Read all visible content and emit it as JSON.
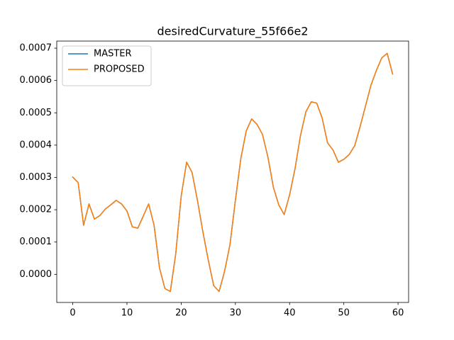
{
  "chart_data": {
    "type": "line",
    "title": "desiredCurvature_55f66e2",
    "x": [
      0,
      1,
      2,
      3,
      4,
      5,
      6,
      7,
      8,
      9,
      10,
      11,
      12,
      13,
      14,
      15,
      16,
      17,
      18,
      19,
      20,
      21,
      22,
      23,
      24,
      25,
      26,
      27,
      28,
      29,
      30,
      31,
      32,
      33,
      34,
      35,
      36,
      37,
      38,
      39,
      40,
      41,
      42,
      43,
      44,
      45,
      46,
      47,
      48,
      49,
      50,
      51,
      52,
      53,
      54,
      55,
      56,
      57,
      58,
      59
    ],
    "series": [
      {
        "name": "MASTER",
        "color": "#1f77b4",
        "values": [
          0.000301,
          0.000284,
          0.000152,
          0.000218,
          0.000171,
          0.000182,
          0.000202,
          0.000215,
          0.000229,
          0.000218,
          0.000196,
          0.000147,
          0.000143,
          0.00018,
          0.000218,
          0.000152,
          2e-05,
          -4.4e-05,
          -5.3e-05,
          6.4e-05,
          0.000242,
          0.000347,
          0.000316,
          0.000229,
          0.000132,
          4.4e-05,
          -3.5e-05,
          -5.3e-05,
          9e-06,
          9.2e-05,
          0.000229,
          0.000358,
          0.000444,
          0.000481,
          0.000464,
          0.000433,
          0.000363,
          0.00027,
          0.000215,
          0.000185,
          0.000246,
          0.000327,
          0.000429,
          0.000503,
          0.000534,
          0.00053,
          0.000484,
          0.000407,
          0.000385,
          0.000347,
          0.000356,
          0.000371,
          0.000398,
          0.000457,
          0.000521,
          0.000585,
          0.000631,
          0.00067,
          0.000684,
          0.00062
        ]
      },
      {
        "name": "PROPOSED",
        "color": "#ff7f0e",
        "values": [
          0.000301,
          0.000284,
          0.000152,
          0.000218,
          0.000171,
          0.000182,
          0.000202,
          0.000215,
          0.000229,
          0.000218,
          0.000196,
          0.000147,
          0.000143,
          0.00018,
          0.000218,
          0.000152,
          2e-05,
          -4.4e-05,
          -5.3e-05,
          6.4e-05,
          0.000242,
          0.000347,
          0.000316,
          0.000229,
          0.000132,
          4.4e-05,
          -3.5e-05,
          -5.3e-05,
          9e-06,
          9.2e-05,
          0.000229,
          0.000358,
          0.000444,
          0.000481,
          0.000464,
          0.000433,
          0.000363,
          0.00027,
          0.000215,
          0.000185,
          0.000246,
          0.000327,
          0.000429,
          0.000503,
          0.000534,
          0.00053,
          0.000484,
          0.000407,
          0.000385,
          0.000347,
          0.000356,
          0.000371,
          0.000398,
          0.000457,
          0.000521,
          0.000585,
          0.000631,
          0.00067,
          0.000684,
          0.00062
        ]
      }
    ],
    "xlim": [
      -2.95,
      61.95
    ],
    "xticks": [
      0,
      10,
      20,
      30,
      40,
      50,
      60
    ],
    "ylim": [
      -8.7e-05,
      0.000722
    ],
    "yticks": [
      {
        "value": 0,
        "label": "0.0000"
      },
      {
        "value": 0.0001,
        "label": "0.0001"
      },
      {
        "value": 0.0002,
        "label": "0.0002"
      },
      {
        "value": 0.0003,
        "label": "0.0003"
      },
      {
        "value": 0.0004,
        "label": "0.0004"
      },
      {
        "value": 0.0005,
        "label": "0.0005"
      },
      {
        "value": 0.0006,
        "label": "0.0006"
      },
      {
        "value": 0.0007,
        "label": "0.0007"
      }
    ],
    "grid": false,
    "legend": "upper left"
  }
}
